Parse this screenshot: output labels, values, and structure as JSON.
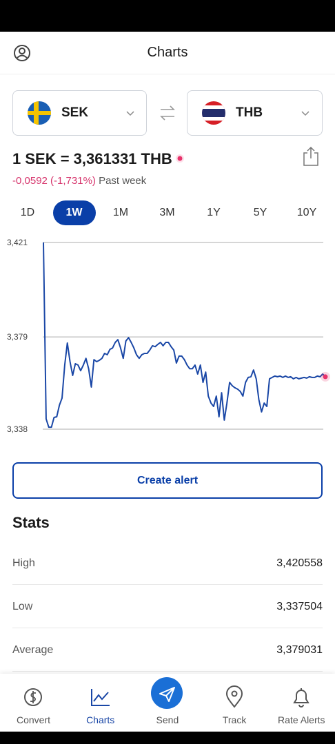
{
  "header": {
    "title": "Charts"
  },
  "pair": {
    "from": "SEK",
    "to": "THB"
  },
  "rate": {
    "text": "1 SEK = 3,361331 THB",
    "change": "-0,0592 (-1,731%)",
    "period": "Past week"
  },
  "ranges": {
    "items": [
      "1D",
      "1W",
      "1M",
      "3M",
      "1Y",
      "5Y",
      "10Y"
    ],
    "selected": 1
  },
  "chart_data": {
    "type": "line",
    "color": "#1a47a6",
    "marker_color": "#e8336b",
    "values": [
      3.421,
      3.3426,
      3.3389,
      3.3389,
      3.3432,
      3.3435,
      3.3487,
      3.3518,
      3.3665,
      3.3763,
      3.368,
      3.3619,
      3.3671,
      3.3665,
      3.364,
      3.3665,
      3.3695,
      3.3649,
      3.3567,
      3.3689,
      3.368,
      3.3686,
      3.3695,
      3.3717,
      3.3711,
      3.3735,
      3.3741,
      3.3766,
      3.3778,
      3.3741,
      3.3695,
      3.3772,
      3.3787,
      3.3766,
      3.3741,
      3.3711,
      3.3695,
      3.3711,
      3.3717,
      3.3717,
      3.3732,
      3.3751,
      3.3747,
      3.3757,
      3.3766,
      3.3751,
      3.3766,
      3.3766,
      3.3747,
      3.3732,
      3.3674,
      3.3705,
      3.3705,
      3.3689,
      3.3665,
      3.3649,
      3.3649,
      3.3665,
      3.3625,
      3.3665,
      3.3588,
      3.3634,
      3.3527,
      3.3496,
      3.3481,
      3.3527,
      3.3435,
      3.3542,
      3.342,
      3.3496,
      3.3588,
      3.3573,
      3.3564,
      3.3558,
      3.3548,
      3.3527,
      3.3588,
      3.361,
      3.3613,
      3.3643,
      3.3604,
      3.3512,
      3.3457,
      3.3496,
      3.3481,
      3.3604,
      3.361,
      3.3616,
      3.3613,
      3.3616,
      3.361,
      3.3616,
      3.361,
      3.3613,
      3.3604,
      3.361,
      3.3604,
      3.3607,
      3.361,
      3.3607,
      3.3613,
      3.361,
      3.361,
      3.3616,
      3.3613,
      3.3625,
      3.3613
    ],
    "ylim": [
      3.338,
      3.421
    ],
    "yticks": [
      {
        "value": 3.338,
        "label": "3,338"
      },
      {
        "value": 3.379,
        "label": "3,379"
      },
      {
        "value": 3.421,
        "label": "3,421"
      }
    ],
    "grid": true
  },
  "alert_button": "Create alert",
  "stats": {
    "title": "Stats",
    "rows": [
      [
        "High",
        "3,420558"
      ],
      [
        "Low",
        "3,337504"
      ],
      [
        "Average",
        "3,379031"
      ]
    ]
  },
  "nav": {
    "items": [
      "Convert",
      "Charts",
      "Send",
      "Track",
      "Rate Alerts"
    ],
    "active": 1
  }
}
